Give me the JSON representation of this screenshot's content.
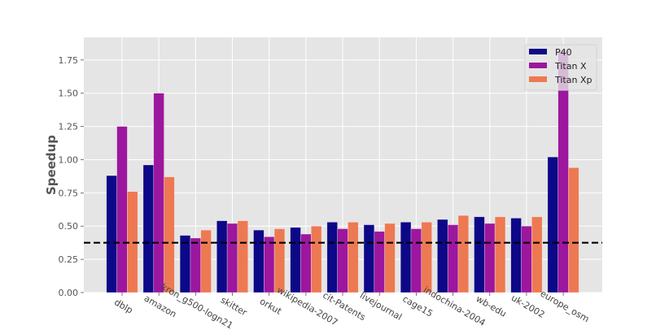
{
  "chart_data": {
    "type": "bar",
    "title": "",
    "xlabel": "",
    "ylabel": "Speedup",
    "ylim": [
      0,
      1.92
    ],
    "yticks": [
      "0.00",
      "0.25",
      "0.50",
      "0.75",
      "1.00",
      "1.25",
      "1.50",
      "1.75"
    ],
    "grid": true,
    "legend_position": "top-right",
    "categories": [
      "dblp",
      "amazon",
      "kron_g500-logn21",
      "skitter",
      "orkut",
      "wikipedia-2007",
      "cit-Patents",
      "livejournal",
      "cage15",
      "indochina-2004",
      "wb-edu",
      "uk-2002",
      "europe_osm"
    ],
    "series": [
      {
        "name": "P40",
        "color": "#0d0887",
        "values": [
          0.88,
          0.96,
          0.43,
          0.54,
          0.47,
          0.49,
          0.53,
          0.51,
          0.53,
          0.55,
          0.57,
          0.56,
          1.02
        ]
      },
      {
        "name": "Titan X",
        "color": "#9c179e",
        "values": [
          1.25,
          1.5,
          0.41,
          0.52,
          0.42,
          0.44,
          0.48,
          0.46,
          0.48,
          0.51,
          0.52,
          0.5,
          1.82
        ]
      },
      {
        "name": "Titan Xp",
        "color": "#ed7953",
        "values": [
          0.76,
          0.87,
          0.47,
          0.54,
          0.48,
          0.5,
          0.53,
          0.52,
          0.53,
          0.58,
          0.57,
          0.57,
          0.94
        ]
      }
    ],
    "reference_line": {
      "value": 0.375,
      "style": "dashed",
      "color": "#000000"
    }
  }
}
